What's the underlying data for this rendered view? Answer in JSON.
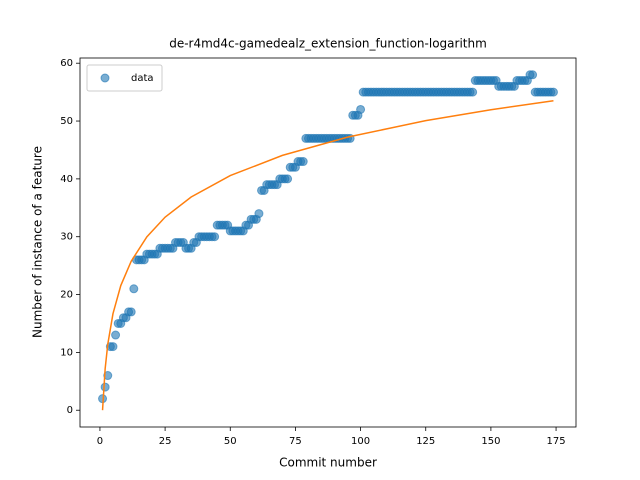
{
  "chart_data": {
    "type": "scatter",
    "title": "de-r4md4c-gamedealz_extension_function-logarithm",
    "xlabel": "Commit number",
    "ylabel": "Number of instance of a feature",
    "xlim": [
      -7.65,
      182.65
    ],
    "ylim": [
      -2.9,
      60.9
    ],
    "xticks": [
      0,
      25,
      50,
      75,
      100,
      125,
      150,
      175
    ],
    "yticks": [
      0,
      10,
      20,
      30,
      40,
      50,
      60
    ],
    "legend": "upper left",
    "series": [
      {
        "name": "data",
        "color": "#1f77b4",
        "x": [
          1,
          2,
          3,
          4,
          5,
          6,
          7,
          8,
          9,
          10,
          11,
          12,
          13,
          14,
          15,
          16,
          17,
          18,
          19,
          20,
          21,
          22,
          23,
          24,
          25,
          26,
          27,
          28,
          29,
          30,
          31,
          32,
          33,
          34,
          35,
          36,
          37,
          38,
          39,
          40,
          41,
          42,
          43,
          44,
          45,
          46,
          47,
          48,
          49,
          50,
          51,
          52,
          53,
          54,
          55,
          56,
          57,
          58,
          59,
          60,
          61,
          62,
          63,
          64,
          65,
          66,
          67,
          68,
          69,
          70,
          71,
          72,
          73,
          74,
          75,
          76,
          77,
          78,
          79,
          80,
          81,
          82,
          83,
          84,
          85,
          86,
          87,
          88,
          89,
          90,
          91,
          92,
          93,
          94,
          95,
          96,
          97,
          98,
          99,
          100,
          101,
          102,
          103,
          104,
          105,
          106,
          107,
          108,
          109,
          110,
          111,
          112,
          113,
          114,
          115,
          116,
          117,
          118,
          119,
          120,
          121,
          122,
          123,
          124,
          125,
          126,
          127,
          128,
          129,
          130,
          131,
          132,
          133,
          134,
          135,
          136,
          137,
          138,
          139,
          140,
          141,
          142,
          143,
          144,
          145,
          146,
          147,
          148,
          149,
          150,
          151,
          152,
          153,
          154,
          155,
          156,
          157,
          158,
          159,
          160,
          161,
          162,
          163,
          164,
          165,
          166,
          167,
          168,
          169,
          170,
          171,
          172,
          173,
          174
        ],
        "values": [
          2,
          4,
          6,
          11,
          11,
          13,
          15,
          15,
          16,
          16,
          17,
          17,
          21,
          26,
          26,
          26,
          26,
          27,
          27,
          27,
          27,
          27,
          28,
          28,
          28,
          28,
          28,
          28,
          29,
          29,
          29,
          29,
          28,
          28,
          28,
          29,
          29,
          30,
          30,
          30,
          30,
          30,
          30,
          30,
          32,
          32,
          32,
          32,
          32,
          31,
          31,
          31,
          31,
          31,
          31,
          32,
          32,
          33,
          33,
          33,
          34,
          38,
          38,
          39,
          39,
          39,
          39,
          39,
          40,
          40,
          40,
          40,
          42,
          42,
          42,
          43,
          43,
          43,
          47,
          47,
          47,
          47,
          47,
          47,
          47,
          47,
          47,
          47,
          47,
          47,
          47,
          47,
          47,
          47,
          47,
          47,
          51,
          51,
          51,
          52,
          55,
          55,
          55,
          55,
          55,
          55,
          55,
          55,
          55,
          55,
          55,
          55,
          55,
          55,
          55,
          55,
          55,
          55,
          55,
          55,
          55,
          55,
          55,
          55,
          55,
          55,
          55,
          55,
          55,
          55,
          55,
          55,
          55,
          55,
          55,
          55,
          55,
          55,
          55,
          55,
          55,
          55,
          55,
          57,
          57,
          57,
          57,
          57,
          57,
          57,
          57,
          57,
          56,
          56,
          56,
          56,
          56,
          56,
          56,
          57,
          57,
          57,
          57,
          57,
          58,
          58,
          55,
          55,
          55,
          55,
          55,
          55,
          55,
          55
        ]
      },
      {
        "color": "#ff7f0e",
        "x": [
          1,
          2,
          3,
          5,
          8,
          12,
          18,
          25,
          35,
          50,
          70,
          95,
          125,
          150,
          174
        ],
        "values": [
          0,
          7.19,
          11.39,
          16.69,
          21.56,
          25.77,
          29.97,
          33.38,
          36.87,
          40.57,
          44.06,
          47.22,
          50.07,
          51.96,
          53.5
        ]
      }
    ]
  }
}
